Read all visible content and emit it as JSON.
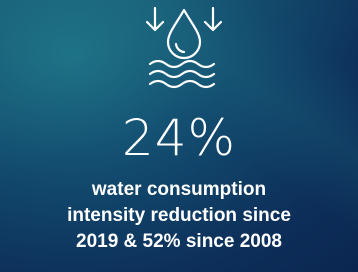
{
  "stat": {
    "value": "24%",
    "description": [
      "water consumption",
      "intensity reduction since",
      "2019 & 52% since 2008"
    ]
  }
}
